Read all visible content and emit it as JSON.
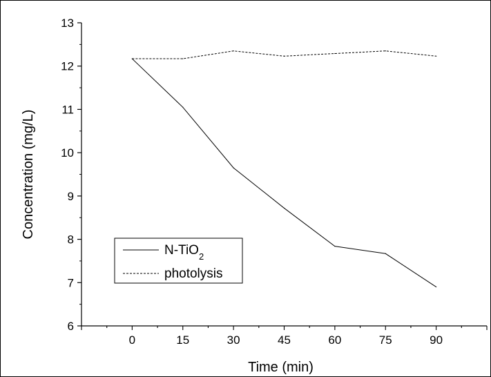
{
  "chart_data": {
    "type": "line",
    "xlabel": "Time (min)",
    "ylabel": "Concentration (mg/L)",
    "xlim": [
      -15,
      105
    ],
    "ylim": [
      6,
      13
    ],
    "x": [
      0,
      15,
      30,
      45,
      60,
      75,
      90
    ],
    "xticks": [
      0,
      15,
      30,
      45,
      60,
      75,
      90
    ],
    "yticks": [
      6,
      7,
      8,
      9,
      10,
      11,
      12,
      13
    ],
    "grid": false,
    "legend_position": "bottom-left",
    "series": [
      {
        "name": "N-TiO2",
        "style": "solid",
        "color": "#000000",
        "values": [
          12.17,
          11.05,
          9.65,
          8.72,
          7.84,
          7.67,
          6.9
        ]
      },
      {
        "name": "photolysis",
        "style": "dashed",
        "color": "#000000",
        "values": [
          12.17,
          12.17,
          12.35,
          12.23,
          12.29,
          12.35,
          12.23
        ]
      }
    ]
  }
}
